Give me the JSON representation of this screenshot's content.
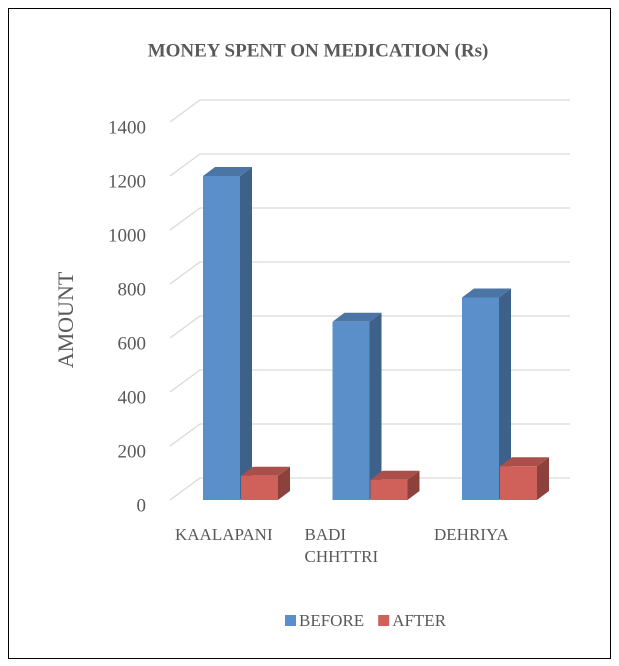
{
  "chart_data": {
    "type": "bar",
    "title": "MONEY SPENT ON MEDICATION (Rs)",
    "y_label": "AMOUNT",
    "categories": [
      "KAALAPANI",
      "BADI CHHTTRI",
      "DEHRIYA"
    ],
    "series": [
      {
        "name": "BEFORE",
        "color": "#5b8fc9",
        "values": [
          1200,
          660,
          750
        ]
      },
      {
        "name": "AFTER",
        "color": "#d0605a",
        "values": [
          90,
          75,
          125
        ]
      }
    ],
    "ylim": [
      0,
      1400
    ],
    "yticks": [
      0,
      200,
      400,
      600,
      800,
      1000,
      1200,
      1400
    ],
    "grid": true,
    "legend": "bottom"
  }
}
